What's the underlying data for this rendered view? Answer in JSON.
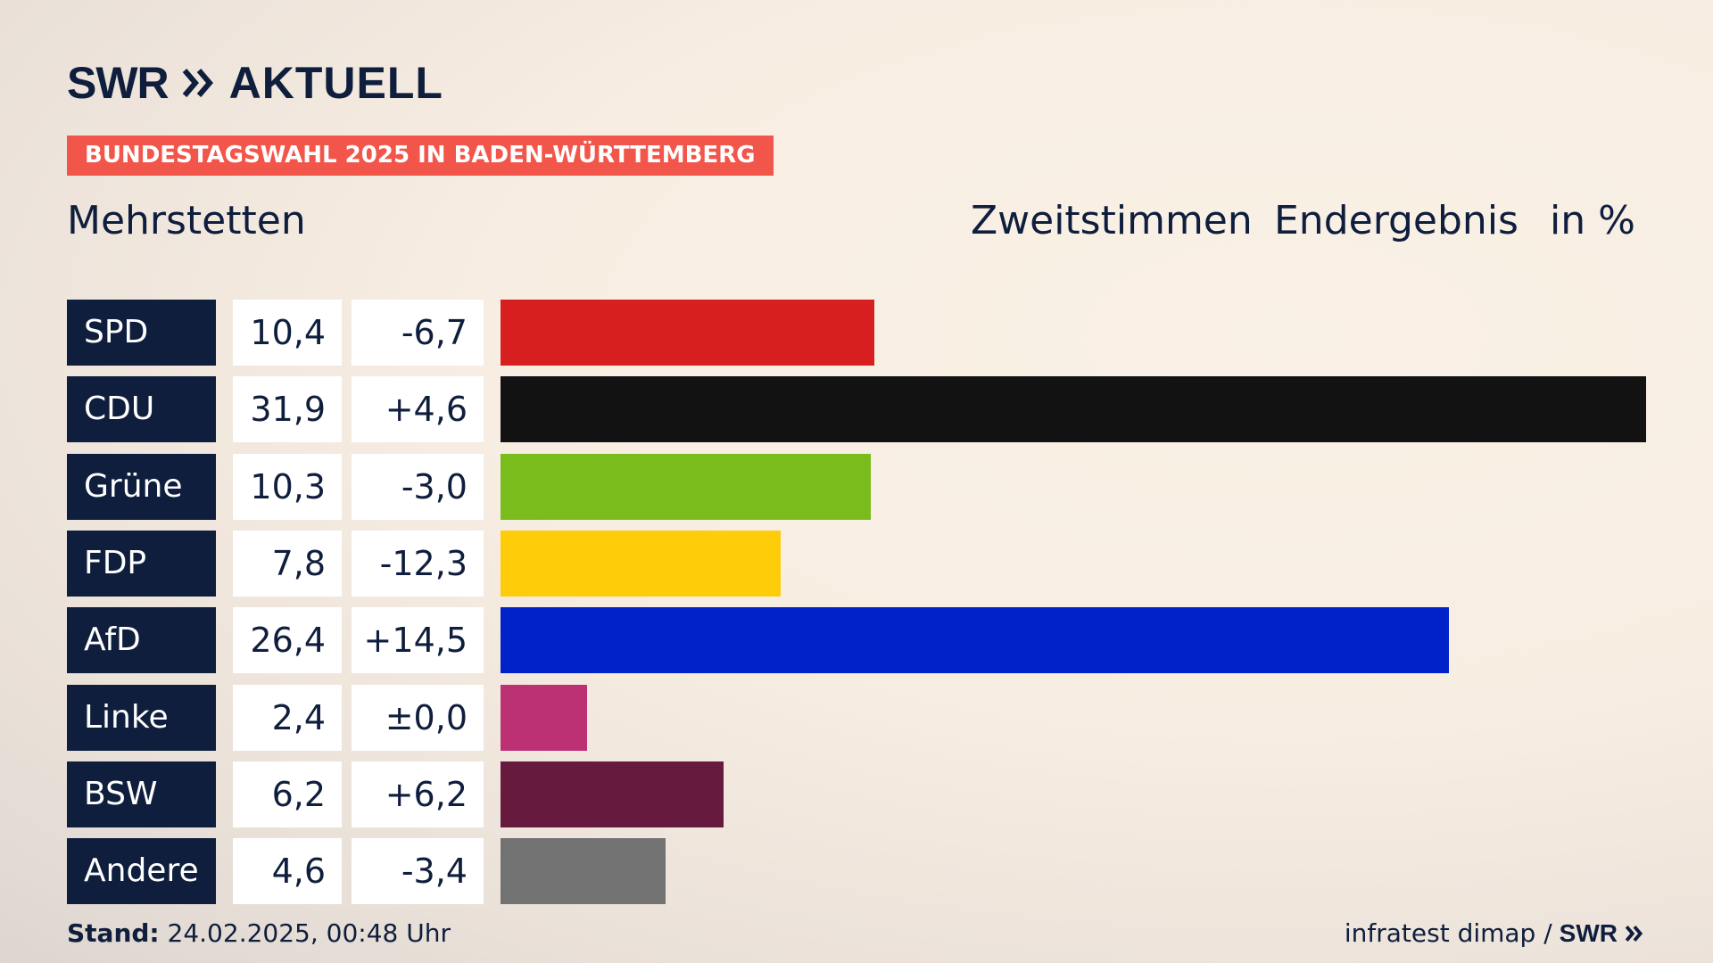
{
  "brand": {
    "swr": "SWR",
    "aktuell": "AKTUELL",
    "color": "#0f1e3d"
  },
  "banner": {
    "text": "BUNDESTAGSWAHL 2025 IN BADEN-WÜRTTEMBERG",
    "color": "#f2554a"
  },
  "place": "Mehrstetten",
  "header": {
    "vote_type": "Zweitstimmen",
    "status": "Endergebnis",
    "unit": "in %"
  },
  "chart_data": {
    "type": "bar",
    "orientation": "horizontal",
    "categories": [
      "SPD",
      "CDU",
      "Grüne",
      "FDP",
      "AfD",
      "Linke",
      "BSW",
      "Andere"
    ],
    "values": [
      10.4,
      31.9,
      10.3,
      7.8,
      26.4,
      2.4,
      6.2,
      4.6
    ],
    "value_labels": [
      "10,4",
      "31,9",
      "10,3",
      "7,8",
      "26,4",
      "2,4",
      "6,2",
      "4,6"
    ],
    "diff_labels": [
      "-6,7",
      "+4,6",
      "-3,0",
      "-12,3",
      "+14,5",
      "±0,0",
      "+6,2",
      "-3,4"
    ],
    "colors": [
      "#d81f20",
      "#121212",
      "#7abc1b",
      "#ffcc0a",
      "#0022c8",
      "#bc3174",
      "#661a3e",
      "#727272"
    ],
    "xlim": [
      0,
      31.9
    ]
  },
  "footer": {
    "stand_label": "Stand:",
    "stand_value": "24.02.2025, 00:48 Uhr",
    "source": "infratest dimap /",
    "source_brand": "SWR"
  }
}
